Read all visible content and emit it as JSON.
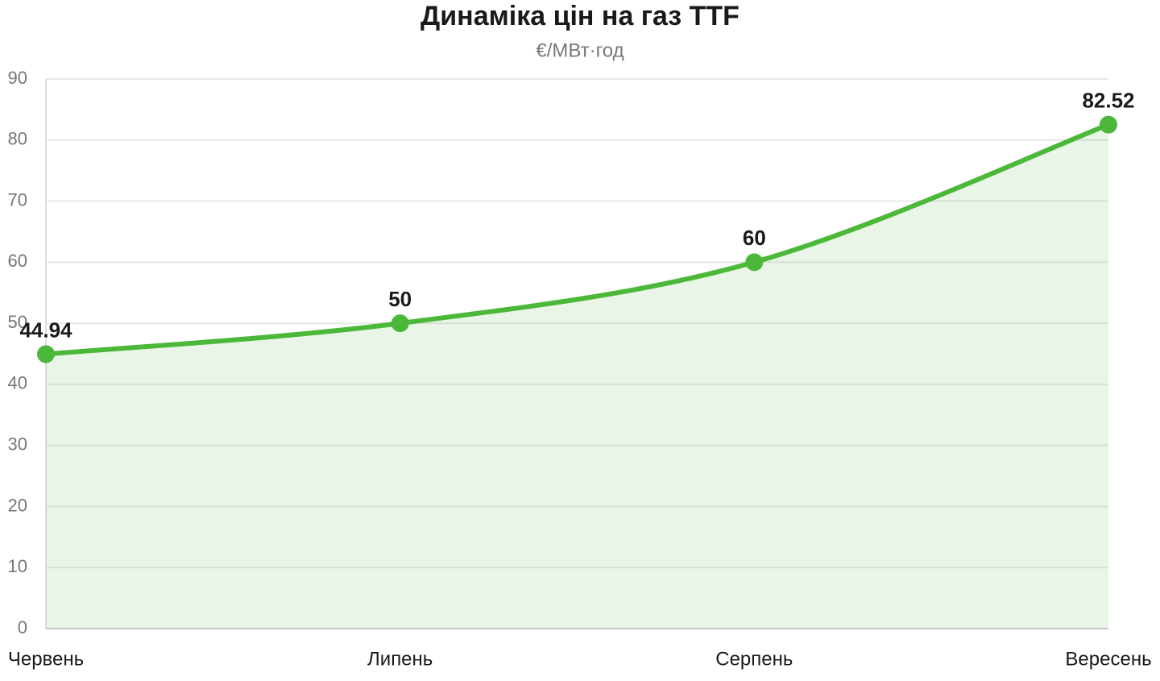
{
  "chart_data": {
    "type": "line",
    "title": "Динаміка цін на газ TTF",
    "subtitle": "€/МВт·год",
    "categories": [
      "Червень",
      "Липень",
      "Серпень",
      "Вересень"
    ],
    "values": [
      44.94,
      50,
      60,
      82.52
    ],
    "color": "#4cb83a",
    "ylim": [
      0,
      90
    ],
    "yticks": [
      0,
      10,
      20,
      30,
      40,
      50,
      60,
      70,
      80,
      90
    ],
    "grid": true,
    "area": true,
    "smooth": true
  }
}
